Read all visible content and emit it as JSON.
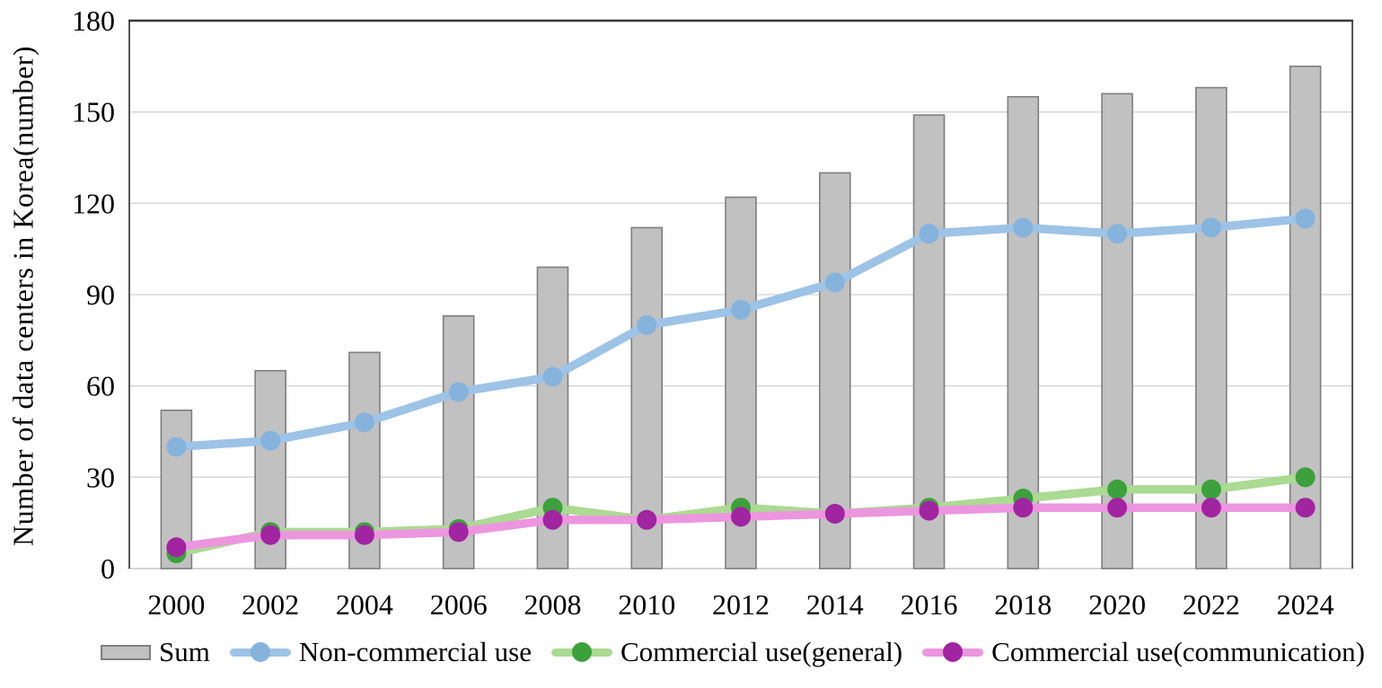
{
  "chart_data": {
    "type": "combo-bar-line",
    "title": "",
    "ylabel": "Number of data centers in Korea(number)",
    "xlabel": "",
    "ylim": [
      0,
      180
    ],
    "yticks": [
      0,
      30,
      60,
      90,
      120,
      150,
      180
    ],
    "grid": true,
    "legend_position": "bottom",
    "categories": [
      "2000",
      "2002",
      "2004",
      "2006",
      "2008",
      "2010",
      "2012",
      "2014",
      "2016",
      "2018",
      "2020",
      "2022",
      "2024"
    ],
    "bar_series": {
      "name": "Sum",
      "values": [
        52,
        65,
        71,
        83,
        99,
        112,
        122,
        130,
        149,
        155,
        156,
        158,
        165
      ],
      "fill": "#C1C1C1",
      "border": "#7F7F7F"
    },
    "line_series": [
      {
        "name": "Non-commercial use",
        "values": [
          40,
          42,
          48,
          58,
          63,
          80,
          85,
          94,
          110,
          112,
          110,
          112,
          115
        ],
        "line_color": "#9DC3E6",
        "marker_color": "#85B3DC"
      },
      {
        "name": "Commercial use(general)",
        "values": [
          5,
          12,
          12,
          13,
          20,
          16,
          20,
          18,
          20,
          23,
          26,
          26,
          30
        ],
        "line_color": "#ABDA92",
        "marker_color": "#3CA03C"
      },
      {
        "name": "Commercial use(communication)",
        "values": [
          7,
          11,
          11,
          12,
          16,
          16,
          17,
          18,
          19,
          20,
          20,
          20,
          20
        ],
        "line_color": "#EC96DF",
        "marker_color": "#A124A1"
      }
    ],
    "colors": {
      "gridline": "#D9D9D9",
      "baseline": "#D4D4D4",
      "border_top": "#383838",
      "border_side": "#555555",
      "tick_label": "#000000"
    }
  }
}
